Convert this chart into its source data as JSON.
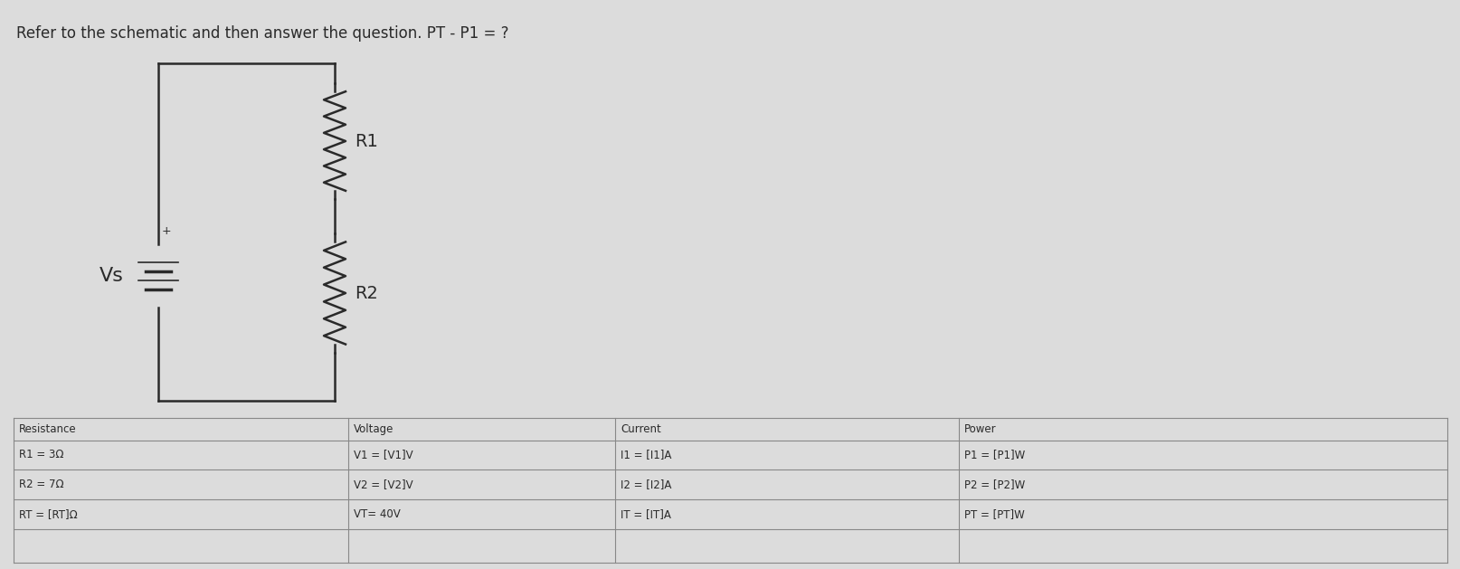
{
  "title": "Refer to the schematic and then answer the question. PT - P1 = ?",
  "title_fontsize": 12,
  "bg_color": "#dcdcdc",
  "vs_label": "Vs",
  "r1_label": "R1",
  "r2_label": "R2",
  "table_headers": [
    "Resistance",
    "Voltage",
    "Current",
    "Power"
  ],
  "table_rows": [
    [
      "R1 = 3Ω",
      "V1 = [V1]V",
      "I1 = [I1]A",
      "P1 = [P1]W"
    ],
    [
      "R2 = 7Ω",
      "V2 = [V2]V",
      "I2 = [I2]A",
      "P2 = [P2]W"
    ],
    [
      "RT = [RT]Ω",
      "VT= 40V",
      "IT = [IT]A",
      "PT = [PT]W"
    ]
  ],
  "line_color": "#2a2a2a",
  "text_color": "#2a2a2a",
  "table_line_color": "#888888",
  "plus_label": "+"
}
